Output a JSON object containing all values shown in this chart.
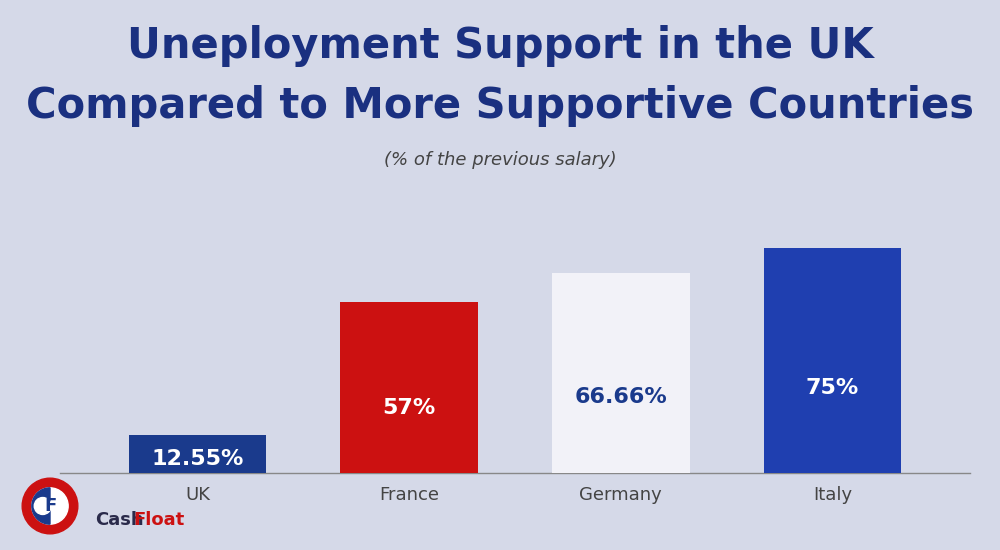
{
  "categories": [
    "UK",
    "France",
    "Germany",
    "Italy"
  ],
  "values": [
    12.55,
    57.0,
    66.66,
    75.0
  ],
  "labels": [
    "12.55%",
    "57%",
    "66.66%",
    "75%"
  ],
  "bar_colors": [
    "#1a3a8c",
    "#cc1111",
    "#f2f2f8",
    "#1f3fb0"
  ],
  "label_colors": [
    "#ffffff",
    "#ffffff",
    "#1a3a8c",
    "#ffffff"
  ],
  "title_line1": "Uneployment Support in the UK",
  "title_line2": "Compared to More Supportive Countries",
  "subtitle": "(% of the previous salary)",
  "background_color": "#d5d9e8",
  "ylim": [
    0,
    90
  ],
  "bar_width": 0.65,
  "title_color": "#1a3080",
  "subtitle_color": "#444444",
  "xlabel_color": "#444444",
  "logo_red": "#cc1111",
  "logo_dark": "#1a3a8c",
  "cash_color": "#2a2a4a",
  "float_color": "#cc1111"
}
